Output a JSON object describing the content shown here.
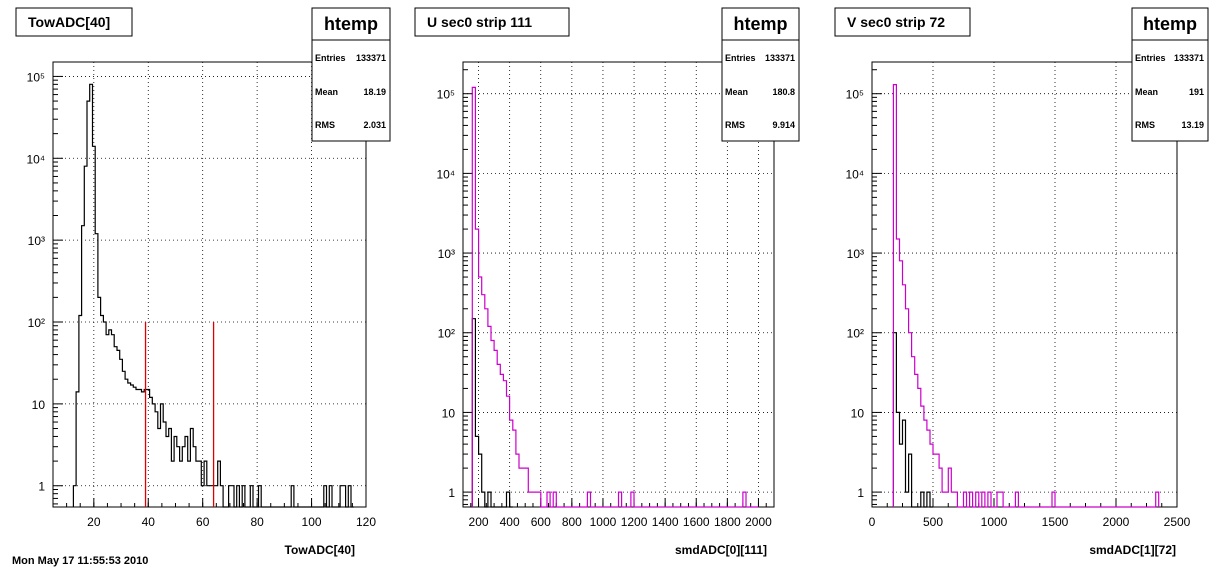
{
  "footer_text": "Mon May 17 11:55:53 2010",
  "chart_data": [
    {
      "type": "histogram",
      "title": "TowADC[40]",
      "xlabel": "TowADC[40]",
      "ylabel": "",
      "log_y": true,
      "grid": true,
      "xlim": [
        5,
        120
      ],
      "ylim": [
        0.55,
        150000
      ],
      "xticks": [
        20,
        40,
        60,
        80,
        100,
        120
      ],
      "xtick_labels": [
        "20",
        "40",
        "60",
        "80",
        "100",
        "120"
      ],
      "yticks": [
        1,
        10,
        100,
        1000,
        10000,
        100000
      ],
      "ytick_labels": [
        "1",
        "10",
        "10²",
        "10³",
        "10⁴",
        "10⁵"
      ],
      "stats": {
        "name": "htemp",
        "rows": [
          {
            "label": "Entries",
            "value": "133371"
          },
          {
            "label": "Mean",
            "value": "18.19"
          },
          {
            "label": "RMS",
            "value": "2.031"
          }
        ]
      },
      "series": [
        {
          "color": "#000000",
          "bin_width": 1,
          "x": [
            13,
            14,
            15,
            16,
            17,
            18,
            19,
            20,
            21,
            22,
            23,
            24,
            25,
            26,
            27,
            28,
            29,
            30,
            31,
            32,
            33,
            34,
            35,
            36,
            37,
            38,
            39,
            40,
            41,
            42,
            43,
            44,
            45,
            46,
            47,
            48,
            49,
            50,
            51,
            52,
            53,
            54,
            55,
            56,
            57,
            58,
            59,
            60,
            61,
            62,
            63,
            64,
            65,
            66,
            67,
            68,
            69,
            70,
            71,
            72,
            73,
            74,
            75,
            76,
            77,
            78,
            79,
            80,
            81,
            82,
            83,
            84,
            85,
            86,
            87,
            88,
            89,
            90,
            91,
            92,
            93,
            94,
            95,
            96,
            97,
            98,
            99,
            100,
            101,
            102,
            103,
            104,
            105,
            106,
            107,
            108,
            109,
            110,
            111,
            112,
            113,
            114,
            115
          ],
          "values": [
            1,
            14,
            120,
            1500,
            8000,
            50000,
            80000,
            14000,
            1200,
            200,
            120,
            100,
            70,
            80,
            70,
            50,
            45,
            35,
            25,
            20,
            18,
            17,
            16,
            15,
            15,
            14,
            15,
            15,
            12,
            10,
            8,
            5,
            10,
            6,
            4,
            5,
            2,
            4,
            3,
            2,
            3,
            4,
            2,
            5,
            3,
            2,
            2,
            1,
            2,
            1,
            1,
            1,
            1,
            2,
            1,
            0,
            0,
            1,
            1,
            0,
            1,
            0,
            1,
            0,
            0,
            1,
            0,
            0,
            1,
            0,
            0,
            0,
            0,
            0,
            0,
            0,
            0,
            0,
            0,
            0,
            1,
            0,
            0,
            0,
            0,
            0,
            0,
            0,
            0,
            0,
            0,
            0,
            1,
            0,
            1,
            0,
            0,
            0,
            1,
            1,
            0,
            1,
            0
          ]
        }
      ],
      "cut_lines": {
        "color": "#dd0000",
        "x": [
          39,
          64
        ],
        "y_top": 100
      }
    },
    {
      "type": "histogram",
      "title": "U sec0 strip 111",
      "xlabel": "smdADC[0][111]",
      "ylabel": "",
      "log_y": true,
      "grid": true,
      "xlim": [
        100,
        2100
      ],
      "ylim": [
        0.65,
        250000
      ],
      "xticks": [
        200,
        400,
        600,
        800,
        1000,
        1200,
        1400,
        1600,
        1800,
        2000
      ],
      "xtick_labels": [
        "200",
        "400",
        "600",
        "800",
        "1000",
        "1200",
        "1400",
        "1600",
        "1800",
        "2000"
      ],
      "yticks": [
        1,
        10,
        100,
        1000,
        10000,
        100000
      ],
      "ytick_labels": [
        "1",
        "10",
        "10²",
        "10³",
        "10⁴",
        "10⁵"
      ],
      "stats": {
        "name": "htemp",
        "rows": [
          {
            "label": "Entries",
            "value": "133371"
          },
          {
            "label": "Mean",
            "value": "180.8"
          },
          {
            "label": "RMS",
            "value": "9.914"
          }
        ]
      },
      "series": [
        {
          "color": "#000000",
          "bin_width": 20,
          "x": [
            170,
            190,
            210,
            230,
            250,
            270,
            290,
            310,
            330,
            350,
            370,
            390,
            410
          ],
          "values": [
            150,
            5,
            3,
            1,
            0,
            1,
            0,
            0,
            0,
            0,
            0,
            1,
            0
          ]
        },
        {
          "color": "#cc00cc",
          "bin_width": 20,
          "x": [
            170,
            190,
            210,
            230,
            250,
            270,
            290,
            310,
            330,
            350,
            370,
            390,
            410,
            430,
            450,
            470,
            490,
            510,
            530,
            550,
            570,
            590,
            610,
            630,
            650,
            670,
            690,
            710,
            730,
            750,
            770,
            790,
            810,
            830,
            850,
            870,
            890,
            910,
            930,
            950,
            970,
            990,
            1010,
            1030,
            1050,
            1070,
            1090,
            1110,
            1130,
            1150,
            1170,
            1190,
            1210,
            1230,
            1250,
            1270,
            1290,
            1310,
            1330,
            1350,
            1370,
            1390,
            1410,
            1430,
            1450,
            1470,
            1490,
            1510,
            1530,
            1550,
            1570,
            1590,
            1610,
            1630,
            1650,
            1670,
            1690,
            1710,
            1730,
            1750,
            1770,
            1790,
            1810,
            1830,
            1850,
            1870,
            1890,
            1910,
            1930,
            1950,
            1970,
            1990
          ],
          "values": [
            120000,
            2000,
            500,
            300,
            200,
            120,
            80,
            60,
            40,
            30,
            25,
            16,
            8,
            6,
            3,
            2,
            2,
            2,
            1,
            1,
            1,
            1,
            0,
            0,
            1,
            0,
            1,
            0,
            0,
            0,
            0,
            0,
            0,
            0,
            0,
            0,
            0,
            1,
            0,
            0,
            0,
            0,
            0,
            0,
            0,
            0,
            0,
            1,
            0,
            0,
            0,
            1,
            0,
            0,
            0,
            0,
            0,
            0,
            0,
            0,
            0,
            0,
            0,
            0,
            0,
            0,
            0,
            0,
            0,
            0,
            0,
            0,
            0,
            0,
            0,
            0,
            0,
            0,
            0,
            0,
            0,
            0,
            0,
            0,
            0,
            0,
            0,
            1,
            0,
            0,
            0,
            0
          ]
        }
      ]
    },
    {
      "type": "histogram",
      "title": "V sec0 strip 72",
      "xlabel": "smdADC[1][72]",
      "ylabel": "",
      "log_y": true,
      "grid": true,
      "xlim": [
        0,
        2500
      ],
      "ylim": [
        0.65,
        250000
      ],
      "xticks": [
        0,
        500,
        1000,
        1500,
        2000,
        2500
      ],
      "xtick_labels": [
        "0",
        "500",
        "1000",
        "1500",
        "2000",
        "2500"
      ],
      "yticks": [
        1,
        10,
        100,
        1000,
        10000,
        100000
      ],
      "ytick_labels": [
        "1",
        "10",
        "10²",
        "10³",
        "10⁴",
        "10⁵"
      ],
      "stats": {
        "name": "htemp",
        "rows": [
          {
            "label": "Entries",
            "value": "133371"
          },
          {
            "label": "Mean",
            "value": "191"
          },
          {
            "label": "RMS",
            "value": "13.19"
          }
        ]
      },
      "series": [
        {
          "color": "#000000",
          "bin_width": 25,
          "x": [
            187.5,
            212.5,
            237.5,
            262.5,
            287.5,
            312.5,
            337.5,
            362.5,
            387.5,
            412.5,
            437.5,
            462.5,
            487.5
          ],
          "values": [
            100,
            10,
            4,
            8,
            1,
            3,
            0,
            0,
            0,
            1,
            0,
            1,
            0
          ]
        },
        {
          "color": "#cc00cc",
          "bin_width": 25,
          "x": [
            187.5,
            212.5,
            237.5,
            262.5,
            287.5,
            312.5,
            337.5,
            362.5,
            387.5,
            412.5,
            437.5,
            462.5,
            487.5,
            512.5,
            537.5,
            562.5,
            587.5,
            612.5,
            637.5,
            662.5,
            687.5,
            712.5,
            737.5,
            762.5,
            787.5,
            812.5,
            837.5,
            862.5,
            887.5,
            912.5,
            937.5,
            962.5,
            987.5,
            1012.5,
            1037.5,
            1062.5,
            1087.5,
            1112.5,
            1137.5,
            1162.5,
            1187.5,
            1212.5,
            1237.5,
            1262.5,
            1287.5,
            1312.5,
            1337.5,
            1362.5,
            1387.5,
            1412.5,
            1437.5,
            1462.5,
            1487.5,
            1512.5,
            1537.5,
            1562.5,
            1587.5,
            1612.5,
            1637.5,
            1662.5,
            1687.5,
            1712.5,
            1737.5,
            1762.5,
            1787.5,
            1812.5,
            1837.5,
            1862.5,
            1887.5,
            1912.5,
            1937.5,
            1962.5,
            1987.5,
            2012.5,
            2037.5,
            2062.5,
            2087.5,
            2112.5,
            2137.5,
            2162.5,
            2187.5,
            2212.5,
            2237.5,
            2262.5,
            2287.5,
            2312.5,
            2337.5
          ],
          "values": [
            130000,
            1500,
            800,
            400,
            200,
            100,
            50,
            30,
            20,
            12,
            8,
            6,
            4,
            3,
            3,
            2,
            1,
            1,
            2,
            1,
            1,
            0,
            0,
            1,
            0,
            1,
            0,
            1,
            0,
            1,
            0,
            1,
            0,
            0,
            1,
            1,
            0,
            0,
            0,
            0,
            1,
            0,
            0,
            0,
            0,
            0,
            0,
            0,
            0,
            0,
            0,
            0,
            1,
            0,
            0,
            0,
            0,
            0,
            0,
            0,
            0,
            0,
            0,
            0,
            0,
            0,
            0,
            0,
            0,
            0,
            0,
            0,
            0,
            0,
            0,
            0,
            0,
            0,
            0,
            0,
            0,
            0,
            0,
            0,
            0,
            0,
            1
          ]
        }
      ]
    }
  ]
}
